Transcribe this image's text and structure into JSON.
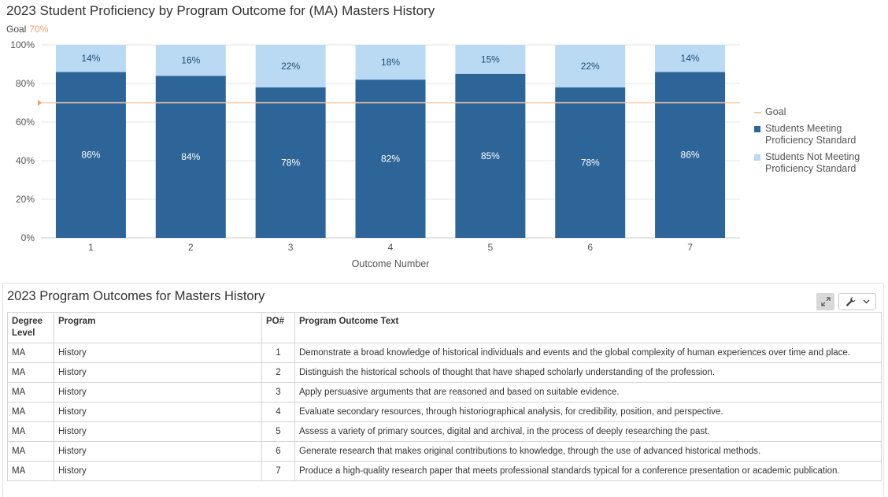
{
  "chart_title": "2023 Student Proficiency by Program Outcome for (MA) Masters History",
  "goal_label": "Goal",
  "goal_value": "70%",
  "chart_data": {
    "type": "bar",
    "stacked": true,
    "categories": [
      "1",
      "2",
      "3",
      "4",
      "5",
      "6",
      "7"
    ],
    "series": [
      {
        "name": "Students Meeting Proficiency Standard",
        "values": [
          86,
          84,
          78,
          82,
          85,
          78,
          86
        ],
        "labels": [
          "86%",
          "84%",
          "78%",
          "82%",
          "85%",
          "78%",
          "86%"
        ],
        "color": "#2e6599"
      },
      {
        "name": "Students Not Meeting Proficiency Standard",
        "values": [
          14,
          16,
          22,
          18,
          15,
          22,
          14
        ],
        "labels": [
          "14%",
          "16%",
          "22%",
          "18%",
          "15%",
          "22%",
          "14%"
        ],
        "color": "#b9daf2"
      }
    ],
    "goal_line": {
      "name": "Goal",
      "value": 70,
      "color": "#f5c9a8"
    },
    "ylim": [
      0,
      100
    ],
    "yticks": [
      "0%",
      "20%",
      "40%",
      "60%",
      "80%",
      "100%"
    ],
    "xlabel": "Outcome Number",
    "ylabel": "",
    "grid": true,
    "legend_position": "right"
  },
  "table_panel": {
    "title": "2023 Program Outcomes for Masters History",
    "expand_icon": "expand-arrows-icon",
    "tools_icon": "wrench-icon",
    "dropdown_icon": "chevron-down-icon",
    "columns": [
      "Degree Level",
      "Program",
      "PO#",
      "Program Outcome Text"
    ],
    "rows": [
      [
        "MA",
        "History",
        "1",
        "Demonstrate a broad knowledge of historical individuals and events and the global complexity of human experiences over time and place."
      ],
      [
        "MA",
        "History",
        "2",
        "Distinguish the historical schools of thought that have shaped scholarly understanding of the profession."
      ],
      [
        "MA",
        "History",
        "3",
        "Apply persuasive arguments that are reasoned and based on suitable evidence."
      ],
      [
        "MA",
        "History",
        "4",
        "Evaluate secondary resources, through historiographical analysis, for credibility, position, and perspective."
      ],
      [
        "MA",
        "History",
        "5",
        "Assess a variety of primary sources, digital and archival, in the process of deeply researching the past."
      ],
      [
        "MA",
        "History",
        "6",
        "Generate research that makes original contributions to knowledge, through the use of advanced historical methods."
      ],
      [
        "MA",
        "History",
        "7",
        "Produce a high-quality research paper that meets professional standards typical for a conference presentation or academic publication."
      ]
    ]
  }
}
